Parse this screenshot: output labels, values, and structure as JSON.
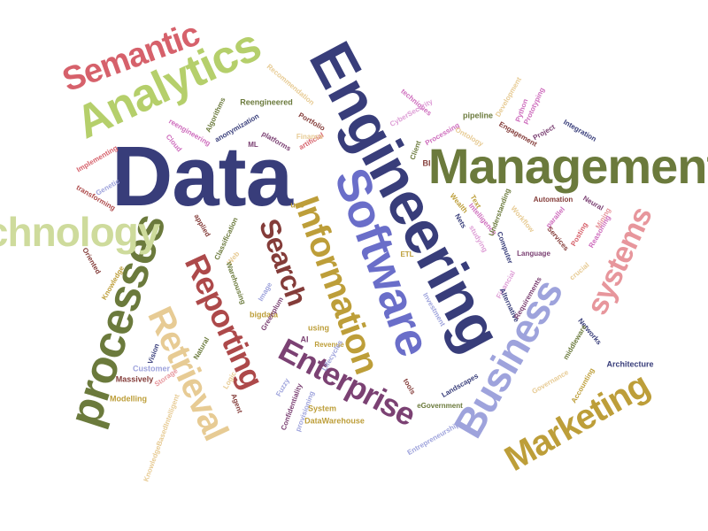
{
  "colors": {
    "navy": "#383d7a",
    "blue": "#6a6ec9",
    "lavender": "#9ea3dc",
    "olive": "#6b7a3c",
    "lime": "#b5cf6b",
    "sage": "#cedb9c",
    "gold": "#bd9e39",
    "sand": "#e7cb94",
    "brown": "#843c39",
    "red": "#ad494a",
    "rose": "#d6616b",
    "pink": "#e7969c",
    "plum": "#7b4173",
    "orchid": "#ce6dbd",
    "mauve": "#de9ed6"
  },
  "words": [
    {
      "text": "Data",
      "color": "navy"
    },
    {
      "text": "Engineering",
      "color": "navy"
    },
    {
      "text": "Software",
      "color": "blue"
    },
    {
      "text": "Management",
      "color": "olive"
    },
    {
      "text": "Analytics",
      "color": "lime"
    },
    {
      "text": "Semantic",
      "color": "rose"
    },
    {
      "text": "processes",
      "color": "olive"
    },
    {
      "text": "Technology",
      "color": "sage"
    },
    {
      "text": "Information",
      "color": "gold"
    },
    {
      "text": "Business",
      "color": "lavender"
    },
    {
      "text": "Reporting",
      "color": "red"
    },
    {
      "text": "Retrieval",
      "color": "sand"
    },
    {
      "text": "Search",
      "color": "brown"
    },
    {
      "text": "Enterprise",
      "color": "plum"
    },
    {
      "text": "systems",
      "color": "pink"
    },
    {
      "text": "Marketing",
      "color": "gold"
    },
    {
      "text": "Reengineered",
      "color": "olive"
    },
    {
      "text": "Recommendation",
      "color": "sand"
    },
    {
      "text": "Algorithms",
      "color": "olive"
    },
    {
      "text": "anonymization",
      "color": "navy"
    },
    {
      "text": "reengineering",
      "color": "orchid"
    },
    {
      "text": "Cloud",
      "color": "orchid"
    },
    {
      "text": "ML",
      "color": "plum"
    },
    {
      "text": "platforms",
      "color": "plum"
    },
    {
      "text": "artificial",
      "color": "rose"
    },
    {
      "text": "Portfolio",
      "color": "brown"
    },
    {
      "text": "Finance",
      "color": "sand"
    },
    {
      "text": "techniques",
      "color": "orchid"
    },
    {
      "text": "CyberSecurity",
      "color": "mauve"
    },
    {
      "text": "Processing",
      "color": "orchid"
    },
    {
      "text": "Ontology",
      "color": "sand"
    },
    {
      "text": "pipeline",
      "color": "olive"
    },
    {
      "text": "Python",
      "color": "orchid"
    },
    {
      "text": "Development",
      "color": "sand"
    },
    {
      "text": "Engagement",
      "color": "brown"
    },
    {
      "text": "Prototyping",
      "color": "orchid"
    },
    {
      "text": "Project",
      "color": "plum"
    },
    {
      "text": "Integration",
      "color": "navy"
    },
    {
      "text": "Client",
      "color": "olive"
    },
    {
      "text": "BI",
      "color": "brown"
    },
    {
      "text": "Implementing",
      "color": "rose"
    },
    {
      "text": "Genetic",
      "color": "lavender"
    },
    {
      "text": "transforming",
      "color": "red"
    },
    {
      "text": "use",
      "color": "gold"
    },
    {
      "text": "Wealth",
      "color": "gold"
    },
    {
      "text": "Nets",
      "color": "navy"
    },
    {
      "text": "Text",
      "color": "gold"
    },
    {
      "text": "Intelligence",
      "color": "orchid"
    },
    {
      "text": "Understanding",
      "color": "olive"
    },
    {
      "text": "Workflow",
      "color": "sand"
    },
    {
      "text": "Automation",
      "color": "brown"
    },
    {
      "text": "Neural",
      "color": "plum"
    },
    {
      "text": "Mining",
      "color": "pink"
    },
    {
      "text": "parallel",
      "color": "orchid"
    },
    {
      "text": "Reasoning",
      "color": "orchid"
    },
    {
      "text": "Services",
      "color": "brown"
    },
    {
      "text": "Posting",
      "color": "rose"
    },
    {
      "text": "studying",
      "color": "mauve"
    },
    {
      "text": "Computer",
      "color": "navy"
    },
    {
      "text": "Language",
      "color": "plum"
    },
    {
      "text": "applied",
      "color": "brown"
    },
    {
      "text": "Classification",
      "color": "olive"
    },
    {
      "text": "Oriented",
      "color": "brown"
    },
    {
      "text": "Knowledge",
      "color": "gold"
    },
    {
      "text": "Web",
      "color": "sand"
    },
    {
      "text": "Warehousing",
      "color": "olive"
    },
    {
      "text": "Image",
      "color": "lavender"
    },
    {
      "text": "bigdata",
      "color": "gold"
    },
    {
      "text": "Greenplum",
      "color": "plum"
    },
    {
      "text": "AI",
      "color": "plum"
    },
    {
      "text": "using",
      "color": "gold"
    },
    {
      "text": "Revenue",
      "color": "gold"
    },
    {
      "text": "Lifecycles",
      "color": "lavender"
    },
    {
      "text": "ETL",
      "color": "gold"
    },
    {
      "text": "Investment",
      "color": "lavender"
    },
    {
      "text": "Financial",
      "color": "mauve"
    },
    {
      "text": "Alternative",
      "color": "navy"
    },
    {
      "text": "Requirements",
      "color": "plum"
    },
    {
      "text": "crucial",
      "color": "sand"
    },
    {
      "text": "Networks",
      "color": "navy"
    },
    {
      "text": "middleware",
      "color": "olive"
    },
    {
      "text": "Vision",
      "color": "navy"
    },
    {
      "text": "Natural",
      "color": "olive"
    },
    {
      "text": "Customer",
      "color": "lavender"
    },
    {
      "text": "Massively",
      "color": "brown"
    },
    {
      "text": "Storage",
      "color": "pink"
    },
    {
      "text": "Modelling",
      "color": "gold"
    },
    {
      "text": "KnowledgeBasedIntelligent",
      "color": "sand"
    },
    {
      "text": "Logic",
      "color": "sand"
    },
    {
      "text": "Agent",
      "color": "brown"
    },
    {
      "text": "Fuzzy",
      "color": "lavender"
    },
    {
      "text": "Confidentiality",
      "color": "plum"
    },
    {
      "text": "provisioning",
      "color": "lavender"
    },
    {
      "text": "System",
      "color": "gold"
    },
    {
      "text": "DataWarehouse",
      "color": "gold"
    },
    {
      "text": "tools",
      "color": "brown"
    },
    {
      "text": "eGovernment",
      "color": "olive"
    },
    {
      "text": "Entrepreneurship",
      "color": "lavender"
    },
    {
      "text": "Landscapes",
      "color": "navy"
    },
    {
      "text": "Governance",
      "color": "sand"
    },
    {
      "text": "Accounting",
      "color": "gold"
    },
    {
      "text": "Architecture",
      "color": "navy"
    }
  ]
}
